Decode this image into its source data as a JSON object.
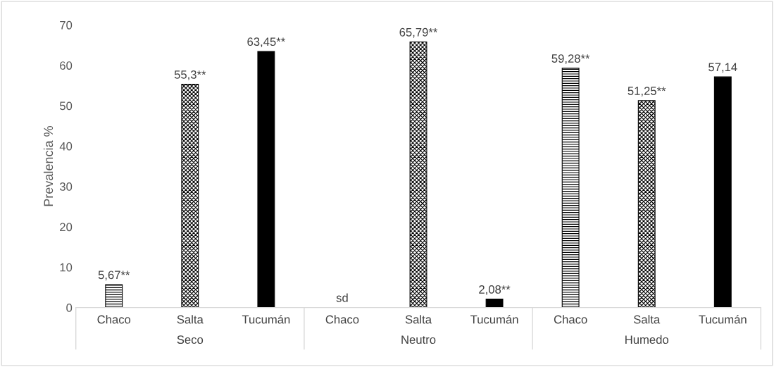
{
  "chart_data": {
    "type": "bar",
    "ylabel": "Prevalencia %",
    "categories": [
      "Seco",
      "Neutro",
      "Humedo"
    ],
    "series": [
      {
        "name": "Chaco",
        "color": "#000000",
        "values": [
          5.67,
          null,
          59.28
        ],
        "value_labels": [
          "5,67**",
          "sd",
          "59,28**"
        ]
      },
      {
        "name": "Salta",
        "color": "#000000",
        "values": [
          55.3,
          65.79,
          51.25
        ],
        "value_labels": [
          "55,3**",
          "65,79**",
          "51,25**"
        ]
      },
      {
        "name": "Tucumán",
        "color": "#000000",
        "values": [
          63.45,
          2.08,
          57.14
        ],
        "value_labels": [
          "63,45**",
          "2,08**",
          "57,14"
        ]
      }
    ],
    "ylim": [
      0,
      70
    ],
    "yticks": [
      0,
      10,
      20,
      30,
      40,
      50,
      60,
      70
    ],
    "grid": false
  }
}
